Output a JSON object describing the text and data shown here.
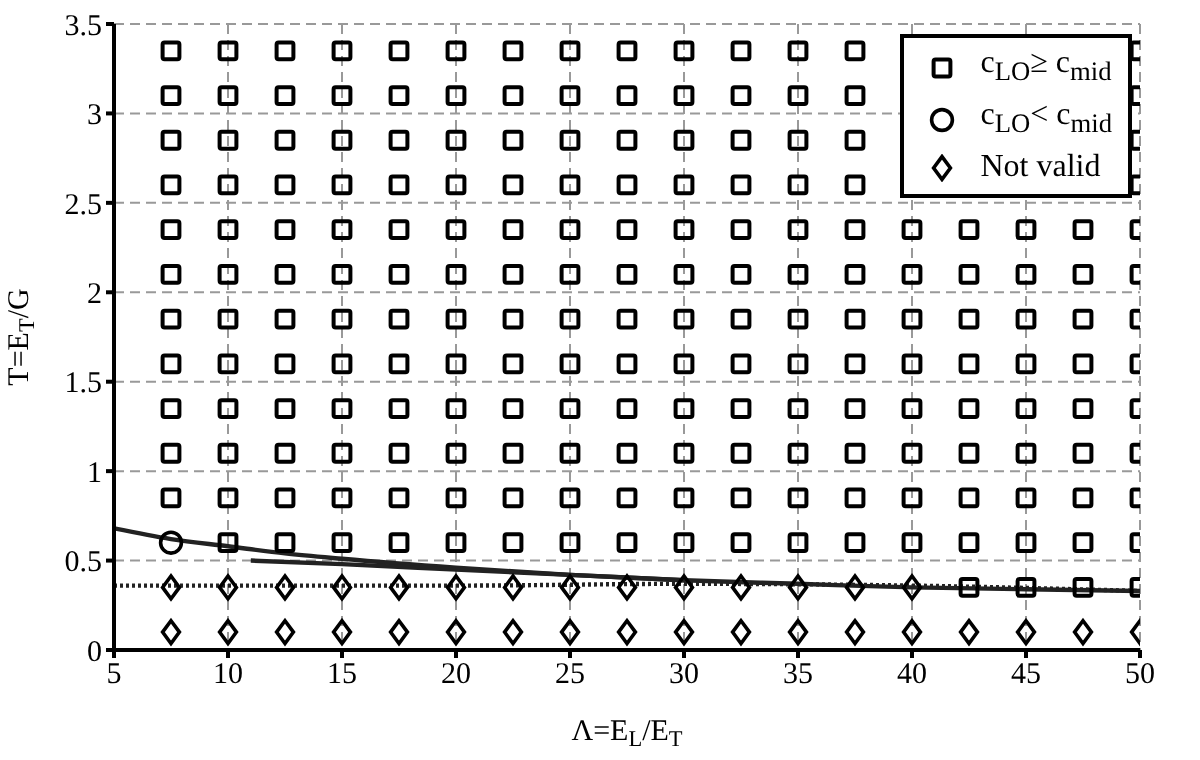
{
  "chart_data": {
    "type": "scatter",
    "xlabel": "Λ=E$_{L}$/E$_{T}$",
    "ylabel": "T=E$_{T}$/G",
    "xlim": [
      5,
      50
    ],
    "ylim": [
      0,
      3.5
    ],
    "xticks": [
      5,
      10,
      15,
      20,
      25,
      30,
      35,
      40,
      45,
      50
    ],
    "yticks": [
      0,
      0.5,
      1,
      1.5,
      2,
      2.5,
      3,
      3.5
    ],
    "grid": true,
    "legend": "top right",
    "series": [
      {
        "name": "c$_{LO}$≥ c$_{mid}$",
        "marker": "square",
        "color": "#000000",
        "x": [
          7.5,
          10,
          12.5,
          15,
          17.5,
          20,
          22.5,
          25,
          27.5,
          30,
          32.5,
          35,
          37.5,
          50,
          7.5,
          10,
          12.5,
          15,
          17.5,
          20,
          22.5,
          25,
          27.5,
          30,
          32.5,
          35,
          37.5,
          50,
          7.5,
          10,
          12.5,
          15,
          17.5,
          20,
          22.5,
          25,
          27.5,
          30,
          32.5,
          35,
          37.5,
          50,
          7.5,
          10,
          12.5,
          15,
          17.5,
          20,
          22.5,
          25,
          27.5,
          30,
          32.5,
          35,
          37.5,
          50,
          7.5,
          10,
          12.5,
          15,
          17.5,
          20,
          22.5,
          25,
          27.5,
          30,
          32.5,
          35,
          37.5,
          40,
          42.5,
          45,
          47.5,
          50,
          7.5,
          10,
          12.5,
          15,
          17.5,
          20,
          22.5,
          25,
          27.5,
          30,
          32.5,
          35,
          37.5,
          40,
          42.5,
          45,
          47.5,
          50,
          7.5,
          10,
          12.5,
          15,
          17.5,
          20,
          22.5,
          25,
          27.5,
          30,
          32.5,
          35,
          37.5,
          40,
          42.5,
          45,
          47.5,
          50,
          7.5,
          10,
          12.5,
          15,
          17.5,
          20,
          22.5,
          25,
          27.5,
          30,
          32.5,
          35,
          37.5,
          40,
          42.5,
          45,
          47.5,
          50,
          7.5,
          10,
          12.5,
          15,
          17.5,
          20,
          22.5,
          25,
          27.5,
          30,
          32.5,
          35,
          37.5,
          40,
          42.5,
          45,
          47.5,
          50,
          7.5,
          10,
          12.5,
          15,
          17.5,
          20,
          22.5,
          25,
          27.5,
          30,
          32.5,
          35,
          37.5,
          40,
          42.5,
          45,
          47.5,
          50,
          7.5,
          10,
          12.5,
          15,
          17.5,
          20,
          22.5,
          25,
          27.5,
          30,
          32.5,
          35,
          37.5,
          40,
          42.5,
          45,
          47.5,
          50,
          10,
          12.5,
          15,
          17.5,
          20,
          22.5,
          25,
          27.5,
          30,
          32.5,
          35,
          37.5,
          40,
          42.5,
          45,
          47.5,
          50,
          42.5,
          45,
          47.5,
          50
        ],
        "values": [
          3.35,
          3.35,
          3.35,
          3.35,
          3.35,
          3.35,
          3.35,
          3.35,
          3.35,
          3.35,
          3.35,
          3.35,
          3.35,
          3.35,
          3.1,
          3.1,
          3.1,
          3.1,
          3.1,
          3.1,
          3.1,
          3.1,
          3.1,
          3.1,
          3.1,
          3.1,
          3.1,
          3.1,
          2.85,
          2.85,
          2.85,
          2.85,
          2.85,
          2.85,
          2.85,
          2.85,
          2.85,
          2.85,
          2.85,
          2.85,
          2.85,
          2.85,
          2.6,
          2.6,
          2.6,
          2.6,
          2.6,
          2.6,
          2.6,
          2.6,
          2.6,
          2.6,
          2.6,
          2.6,
          2.6,
          2.6,
          2.35,
          2.35,
          2.35,
          2.35,
          2.35,
          2.35,
          2.35,
          2.35,
          2.35,
          2.35,
          2.35,
          2.35,
          2.35,
          2.35,
          2.35,
          2.35,
          2.35,
          2.35,
          2.1,
          2.1,
          2.1,
          2.1,
          2.1,
          2.1,
          2.1,
          2.1,
          2.1,
          2.1,
          2.1,
          2.1,
          2.1,
          2.1,
          2.1,
          2.1,
          2.1,
          2.1,
          1.85,
          1.85,
          1.85,
          1.85,
          1.85,
          1.85,
          1.85,
          1.85,
          1.85,
          1.85,
          1.85,
          1.85,
          1.85,
          1.85,
          1.85,
          1.85,
          1.85,
          1.85,
          1.6,
          1.6,
          1.6,
          1.6,
          1.6,
          1.6,
          1.6,
          1.6,
          1.6,
          1.6,
          1.6,
          1.6,
          1.6,
          1.6,
          1.6,
          1.6,
          1.6,
          1.6,
          1.35,
          1.35,
          1.35,
          1.35,
          1.35,
          1.35,
          1.35,
          1.35,
          1.35,
          1.35,
          1.35,
          1.35,
          1.35,
          1.35,
          1.35,
          1.35,
          1.35,
          1.35,
          1.1,
          1.1,
          1.1,
          1.1,
          1.1,
          1.1,
          1.1,
          1.1,
          1.1,
          1.1,
          1.1,
          1.1,
          1.1,
          1.1,
          1.1,
          1.1,
          1.1,
          1.1,
          0.85,
          0.85,
          0.85,
          0.85,
          0.85,
          0.85,
          0.85,
          0.85,
          0.85,
          0.85,
          0.85,
          0.85,
          0.85,
          0.85,
          0.85,
          0.85,
          0.85,
          0.85,
          0.6,
          0.6,
          0.6,
          0.6,
          0.6,
          0.6,
          0.6,
          0.6,
          0.6,
          0.6,
          0.6,
          0.6,
          0.6,
          0.6,
          0.6,
          0.6,
          0.6,
          0.35,
          0.35,
          0.35,
          0.35
        ]
      },
      {
        "name": "c$_{LO}$< c$_{mid}$",
        "marker": "circle",
        "color": "#000000",
        "x": [
          7.5
        ],
        "values": [
          0.6
        ]
      },
      {
        "name": "Not valid",
        "marker": "diamond",
        "color": "#000000",
        "x": [
          7.5,
          10,
          12.5,
          15,
          17.5,
          20,
          22.5,
          25,
          27.5,
          30,
          32.5,
          35,
          37.5,
          40,
          42.5,
          45,
          47.5,
          50,
          7.5,
          10,
          12.5,
          15,
          17.5,
          20,
          22.5,
          25,
          27.5,
          30,
          32.5,
          35,
          37.5,
          40
        ],
        "values": [
          0.1,
          0.1,
          0.1,
          0.1,
          0.1,
          0.1,
          0.1,
          0.1,
          0.1,
          0.1,
          0.1,
          0.1,
          0.1,
          0.1,
          0.1,
          0.1,
          0.1,
          0.1,
          0.35,
          0.35,
          0.35,
          0.35,
          0.35,
          0.35,
          0.35,
          0.35,
          0.35,
          0.35,
          0.35,
          0.35,
          0.35,
          0.35
        ]
      },
      {
        "type": "line",
        "marker": "none",
        "line_style": "solid",
        "color": "#222222",
        "x": [
          5,
          7.5,
          10,
          12.5,
          15,
          20,
          25,
          30,
          35,
          40,
          45,
          50
        ],
        "values": [
          0.68,
          0.62,
          0.58,
          0.54,
          0.51,
          0.46,
          0.42,
          0.39,
          0.37,
          0.35,
          0.34,
          0.33
        ]
      },
      {
        "type": "line",
        "marker": "none",
        "line_style": "solid",
        "color": "#222222",
        "x": [
          11,
          15,
          20,
          25,
          30
        ],
        "values": [
          0.5,
          0.48,
          0.45,
          0.42,
          0.39
        ]
      },
      {
        "type": "line",
        "marker": "none",
        "line_style": "dotted",
        "color": "#222222",
        "x": [
          5,
          20,
          30,
          40,
          50
        ],
        "values": [
          0.36,
          0.36,
          0.37,
          0.36,
          0.33
        ]
      }
    ]
  }
}
